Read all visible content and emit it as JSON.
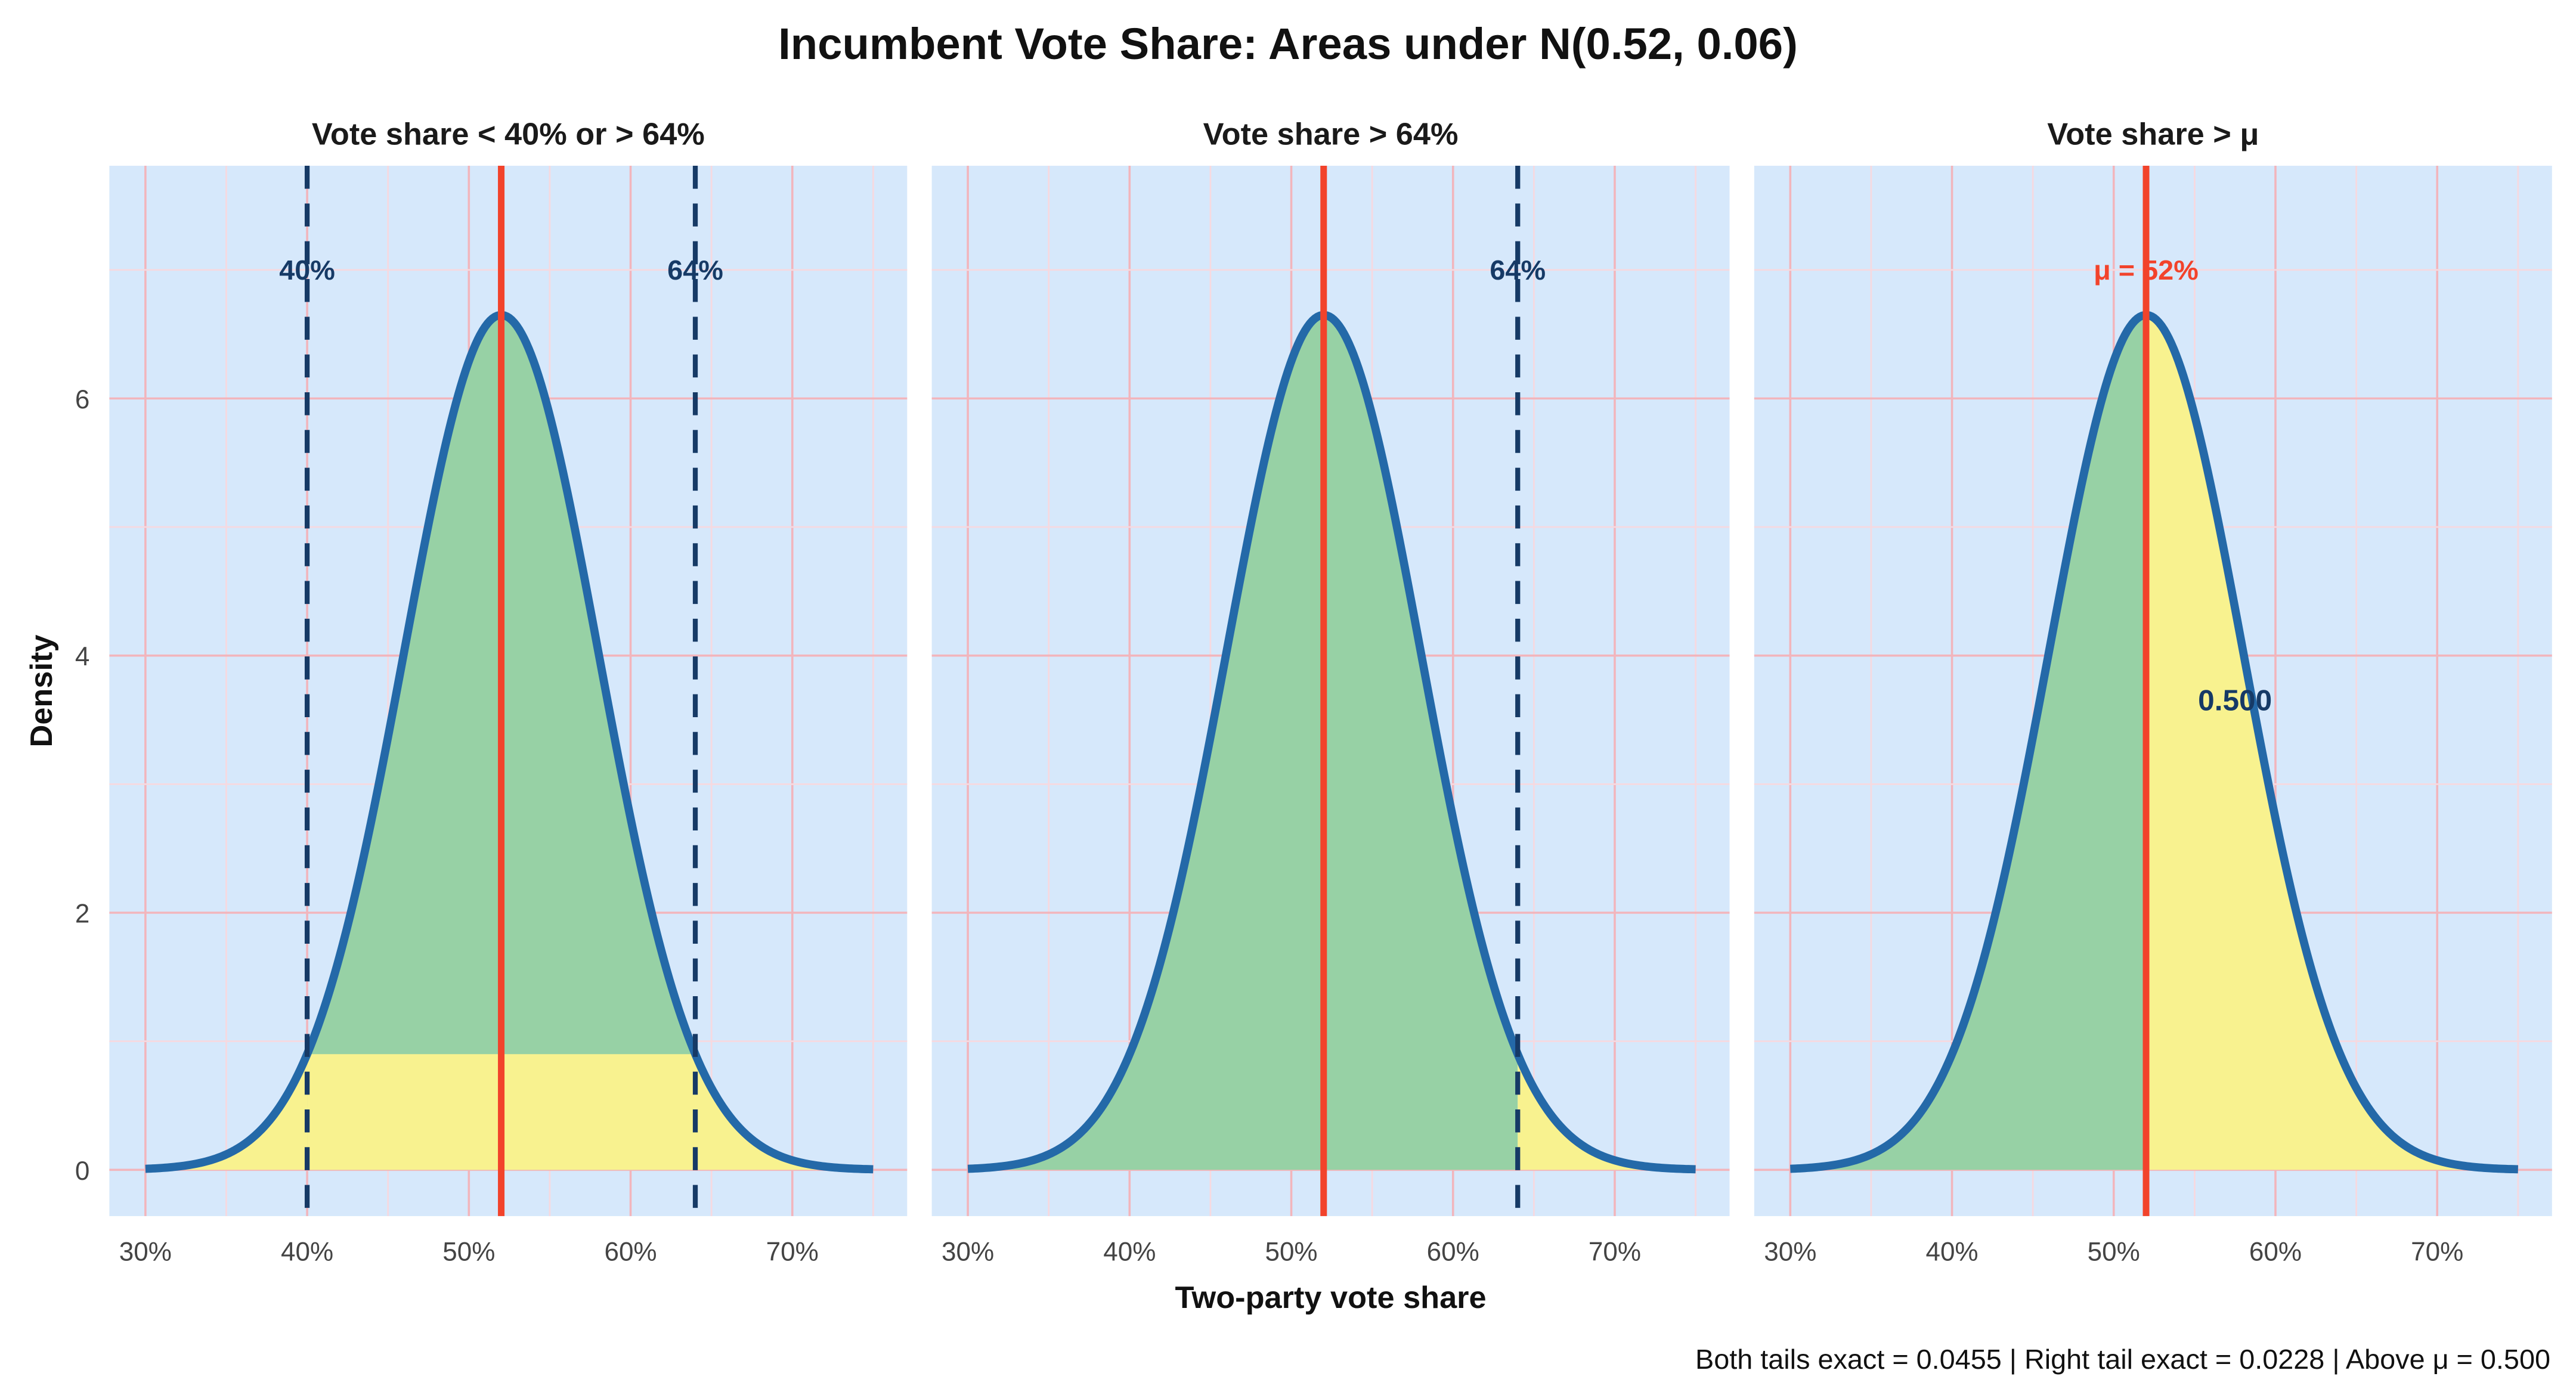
{
  "chart_data": {
    "type": "area",
    "title": "Incumbent Vote Share: Areas under N(0.52, 0.06)",
    "xlabel": "Two-party vote share",
    "ylabel": "Density",
    "caption": "Both tails exact = 0.0455 | Right tail exact = 0.0228 | Above μ = 0.500",
    "distribution": {
      "mean": 0.52,
      "sd": 0.06,
      "x_range": [
        0.3,
        0.75
      ]
    },
    "xlim": [
      0.2777,
      0.771
    ],
    "ylim": [
      -0.36,
      7.81
    ],
    "x_ticks": [
      0.3,
      0.4,
      0.5,
      0.6,
      0.7
    ],
    "x_tick_labels": [
      "30%",
      "40%",
      "50%",
      "60%",
      "70%"
    ],
    "y_ticks": [
      0,
      2,
      4,
      6
    ],
    "y_tick_labels": [
      "0",
      "2",
      "4",
      "6"
    ],
    "grid": true,
    "colors": {
      "background": "#d6e8fb",
      "grid_major": "#f2b5bc",
      "grid_minor": "#f6d9e0",
      "curve": "#2469a8",
      "green": "#97d1a5",
      "yellow": "#f8f28f",
      "mean_line": "#f2432b",
      "cutoff": "#163a66"
    },
    "panels": [
      {
        "title": "Vote share < 40% or > 64%",
        "mode": "both",
        "cutoffs": [
          0.4,
          0.64
        ],
        "cutoff_labels": [
          "40%",
          "64%"
        ],
        "label_y": 7.0
      },
      {
        "title": "Vote share > 64%",
        "mode": "right",
        "cutoffs": [
          0.64
        ],
        "cutoff_labels": [
          "64%"
        ],
        "label_y": 7.0
      },
      {
        "title": "Vote share > μ",
        "mode": "mean",
        "cutoffs": [],
        "cutoff_labels": [],
        "mean_label": "μ = 52%",
        "label_y": 7.0,
        "area_label": "0.500",
        "area_label_pos": [
          0.575,
          3.65
        ]
      }
    ]
  }
}
